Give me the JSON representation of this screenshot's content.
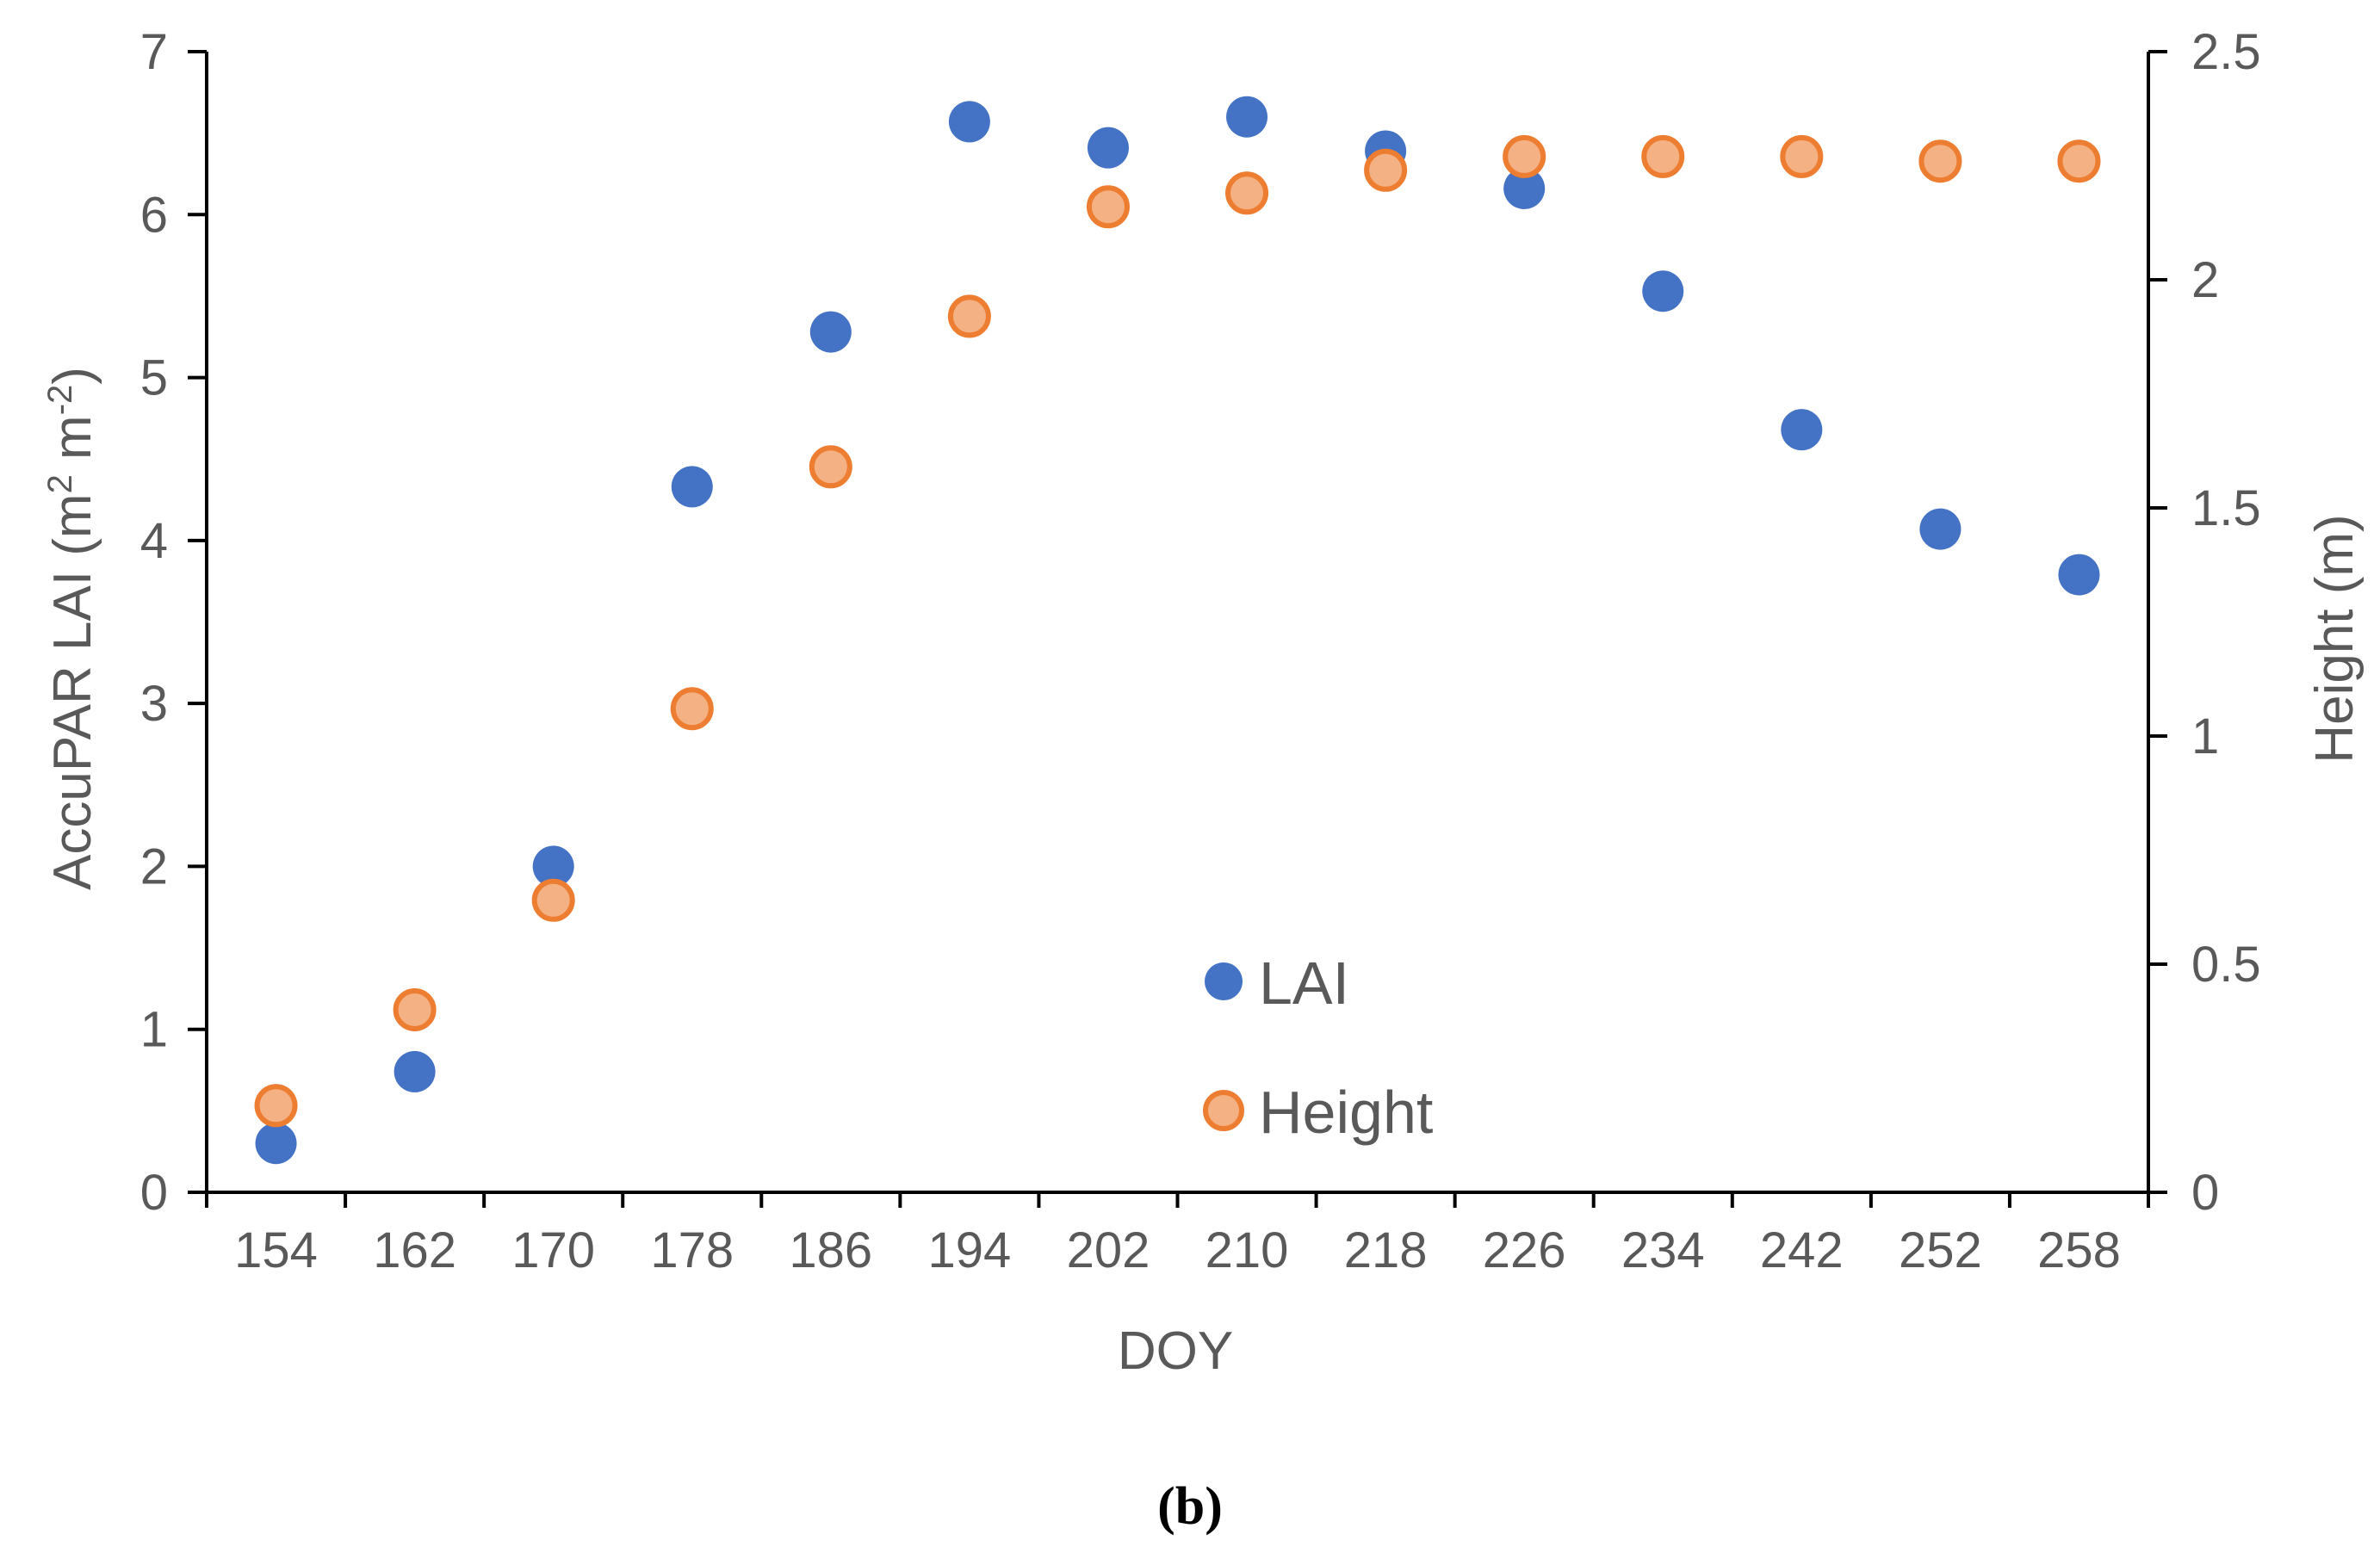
{
  "chart_data": {
    "type": "scatter",
    "categories": [
      "154",
      "162",
      "170",
      "178",
      "186",
      "194",
      "202",
      "210",
      "218",
      "226",
      "234",
      "242",
      "252",
      "258"
    ],
    "series": [
      {
        "name": "LAI",
        "axis": "left",
        "values": [
          0.3,
          0.74,
          2.0,
          4.33,
          5.28,
          6.57,
          6.41,
          6.6,
          6.39,
          6.16,
          5.53,
          4.68,
          4.07,
          3.79
        ],
        "fill": "#4472C4",
        "stroke": "#4472C4"
      },
      {
        "name": "Height",
        "axis": "right",
        "values": [
          0.19,
          0.4,
          0.64,
          1.06,
          1.59,
          1.92,
          2.16,
          2.19,
          2.24,
          2.27,
          2.27,
          2.27,
          2.26,
          2.26
        ],
        "fill": "#F4B183",
        "stroke": "#ED7D31"
      }
    ],
    "xlabel": "DOY",
    "ylabel_left": {
      "main": "AccuPAR  LAI (m",
      "sup1": "2",
      "mid": " m",
      "sup2": "-2",
      "end": ")"
    },
    "ylabel_right": "Height (m)",
    "ylim_left": [
      0,
      7
    ],
    "yticks_left": [
      "0",
      "1",
      "2",
      "3",
      "4",
      "5",
      "6",
      "7"
    ],
    "ylim_right": [
      0,
      2.5
    ],
    "yticks_right": [
      "0",
      "0.5",
      "1",
      "1.5",
      "2",
      "2.5"
    ],
    "legend": {
      "position": "bottom-center",
      "entries": [
        "LAI",
        "Height"
      ]
    },
    "caption": "(b)",
    "grid": false
  }
}
